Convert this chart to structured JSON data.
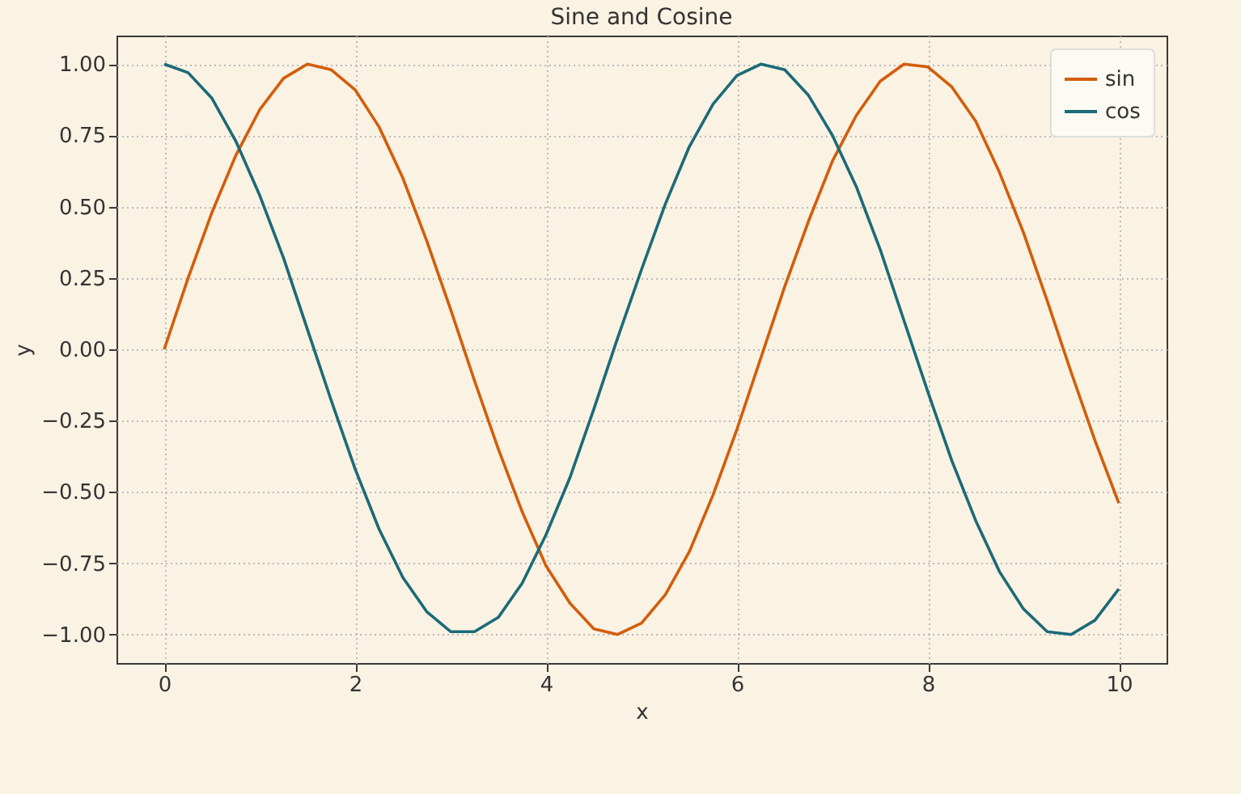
{
  "chart_data": {
    "type": "line",
    "title": "Sine and Cosine",
    "xlabel": "x",
    "ylabel": "y",
    "x": [
      0,
      0.25,
      0.5,
      0.75,
      1,
      1.25,
      1.5,
      1.75,
      2,
      2.25,
      2.5,
      2.75,
      3,
      3.25,
      3.5,
      3.75,
      4,
      4.25,
      4.5,
      4.75,
      5,
      5.25,
      5.5,
      5.75,
      6,
      6.25,
      6.5,
      6.75,
      7,
      7.25,
      7.5,
      7.75,
      8,
      8.25,
      8.5,
      8.75,
      9,
      9.25,
      9.5,
      9.75,
      10
    ],
    "series": [
      {
        "name": "sin",
        "color": "#d35d0b",
        "values": [
          0,
          0.25,
          0.48,
          0.68,
          0.84,
          0.95,
          1.0,
          0.98,
          0.91,
          0.78,
          0.6,
          0.38,
          0.14,
          -0.11,
          -0.35,
          -0.57,
          -0.76,
          -0.89,
          -0.98,
          -1.0,
          -0.96,
          -0.86,
          -0.71,
          -0.51,
          -0.28,
          -0.03,
          0.22,
          0.45,
          0.66,
          0.82,
          0.94,
          1.0,
          0.99,
          0.92,
          0.8,
          0.62,
          0.41,
          0.17,
          -0.08,
          -0.32,
          -0.54
        ]
      },
      {
        "name": "cos",
        "color": "#1b6a78",
        "values": [
          1,
          0.97,
          0.88,
          0.73,
          0.54,
          0.32,
          0.07,
          -0.18,
          -0.42,
          -0.63,
          -0.8,
          -0.92,
          -0.99,
          -0.99,
          -0.94,
          -0.82,
          -0.65,
          -0.45,
          -0.21,
          0.04,
          0.28,
          0.51,
          0.71,
          0.86,
          0.96,
          1.0,
          0.98,
          0.89,
          0.75,
          0.57,
          0.35,
          0.1,
          -0.15,
          -0.39,
          -0.6,
          -0.78,
          -0.91,
          -0.99,
          -1.0,
          -0.95,
          -0.84
        ]
      }
    ],
    "xlim": [
      -0.5,
      10.5
    ],
    "xticks": [
      0,
      2,
      4,
      6,
      8,
      10
    ],
    "ylim": [
      -1.1,
      1.1
    ],
    "yticks": [
      {
        "value": -1,
        "label": "−1.00"
      },
      {
        "value": -0.75,
        "label": "−0.75"
      },
      {
        "value": -0.5,
        "label": "−0.50"
      },
      {
        "value": -0.25,
        "label": "−0.25"
      },
      {
        "value": 0,
        "label": "0.00"
      },
      {
        "value": 0.25,
        "label": "0.25"
      },
      {
        "value": 0.5,
        "label": "0.50"
      },
      {
        "value": 0.75,
        "label": "0.75"
      },
      {
        "value": 1,
        "label": "1.00"
      }
    ],
    "grid": true,
    "legend": "top right",
    "line_style": "solid"
  }
}
